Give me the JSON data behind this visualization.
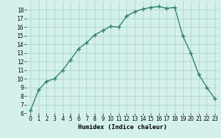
{
  "title": "",
  "xlabel": "Humidex (Indice chaleur)",
  "x": [
    0,
    1,
    2,
    3,
    4,
    5,
    6,
    7,
    8,
    9,
    10,
    11,
    12,
    13,
    14,
    15,
    16,
    17,
    18,
    19,
    20,
    21,
    22,
    23
  ],
  "y": [
    6.3,
    8.7,
    9.7,
    10.0,
    11.0,
    12.2,
    13.5,
    14.2,
    15.1,
    15.6,
    16.1,
    16.0,
    17.3,
    17.8,
    18.1,
    18.3,
    18.4,
    18.2,
    18.3,
    15.0,
    13.0,
    10.5,
    9.0,
    7.7
  ],
  "line_color": "#2e7d6e",
  "marker": "+",
  "marker_size": 4,
  "marker_lw": 1.0,
  "line_width": 1.0,
  "bg_color": "#d4f0eb",
  "grid_color": "#aad4cc",
  "ylim": [
    6,
    19
  ],
  "xlim": [
    -0.5,
    23.5
  ],
  "yticks": [
    6,
    7,
    8,
    9,
    10,
    11,
    12,
    13,
    14,
    15,
    16,
    17,
    18
  ],
  "xticks": [
    0,
    1,
    2,
    3,
    4,
    5,
    6,
    7,
    8,
    9,
    10,
    11,
    12,
    13,
    14,
    15,
    16,
    17,
    18,
    19,
    20,
    21,
    22,
    23
  ],
  "label_fontsize": 6.5,
  "tick_fontsize": 5.5
}
